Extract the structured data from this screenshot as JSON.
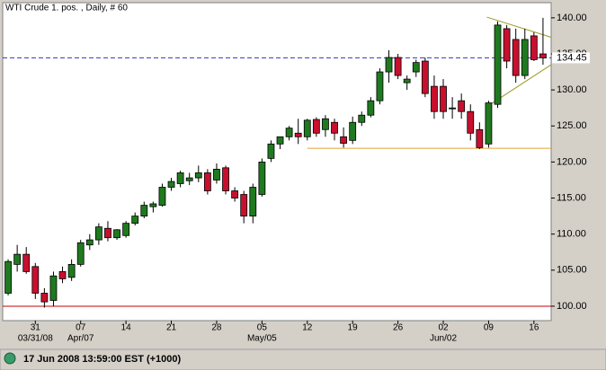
{
  "chart_data": {
    "type": "candlestick",
    "title": "WTI Crude 1. pos. , Daily, # 60",
    "up_color": "#1f7a1f",
    "down_color": "#c8102e",
    "xlim": [
      -0.6,
      59.9
    ],
    "ylim": [
      98,
      142.1
    ],
    "yticks": [
      {
        "value": 100,
        "label": "100.00"
      },
      {
        "value": 105,
        "label": "105.00"
      },
      {
        "value": 110,
        "label": "110.00"
      },
      {
        "value": 115,
        "label": "115.00"
      },
      {
        "value": 120,
        "label": "120.00"
      },
      {
        "value": 125,
        "label": "125.00"
      },
      {
        "value": 130,
        "label": "130.00"
      },
      {
        "value": 135,
        "label": "135.00"
      },
      {
        "value": 140,
        "label": "140.00"
      }
    ],
    "xticks": [
      {
        "value": 3,
        "label": "31"
      },
      {
        "value": 8,
        "label": "07"
      },
      {
        "value": 13,
        "label": "14"
      },
      {
        "value": 18,
        "label": "21"
      },
      {
        "value": 23,
        "label": "28"
      },
      {
        "value": 28,
        "label": "05"
      },
      {
        "value": 33,
        "label": "12"
      },
      {
        "value": 38,
        "label": "19"
      },
      {
        "value": 43,
        "label": "26"
      },
      {
        "value": 48,
        "label": "02"
      },
      {
        "value": 53,
        "label": "09"
      },
      {
        "value": 58,
        "label": "16"
      }
    ],
    "xticks_major": [
      {
        "value": 3,
        "label": "03/31/08"
      },
      {
        "value": 8,
        "label": "Apr/07"
      },
      {
        "value": 28,
        "label": "May/05"
      },
      {
        "value": 48,
        "label": "Jun/02"
      }
    ],
    "open": [
      101.8,
      105.8,
      107.2,
      105.5,
      101.8,
      100.8,
      104.8,
      104.0,
      105.8,
      108.5,
      109.2,
      110.8,
      109.5,
      109.8,
      111.5,
      112.5,
      113.8,
      114.0,
      116.5,
      117.0,
      117.4,
      117.8,
      118.5,
      117.5,
      119.2,
      116.0,
      115.5,
      112.5,
      115.5,
      120.5,
      122.5,
      123.5,
      124.0,
      123.5,
      125.9,
      124.5,
      125.5,
      123.5,
      123.0,
      125.5,
      126.5,
      128.5,
      132.5,
      134.5,
      131.0,
      132.5,
      134.0,
      130.5,
      130.5,
      127.5,
      128.5,
      127.0,
      124.5,
      122.5,
      128.0,
      138.5,
      137.0,
      132.0,
      137.5,
      135.0
    ],
    "high": [
      106.5,
      108.5,
      108.2,
      106.0,
      102.5,
      104.8,
      105.5,
      106.5,
      109.2,
      110.0,
      111.5,
      111.8,
      110.7,
      111.8,
      113.0,
      114.5,
      114.5,
      117.0,
      117.8,
      118.8,
      118.5,
      119.5,
      119.0,
      119.8,
      119.5,
      116.5,
      116.0,
      117.0,
      120.5,
      123.0,
      123.5,
      125.0,
      126.0,
      126.0,
      126.2,
      126.5,
      126.0,
      124.8,
      126.3,
      127.0,
      129.0,
      133.0,
      135.5,
      135.0,
      132.0,
      134.2,
      134.5,
      132.0,
      131.5,
      129.0,
      129.5,
      128.0,
      125.5,
      128.5,
      139.5,
      139.0,
      138.5,
      138.5,
      138.0,
      140.0
    ],
    "low": [
      101.5,
      104.8,
      104.5,
      101.0,
      99.8,
      100.0,
      103.2,
      103.5,
      105.5,
      107.8,
      108.5,
      109.0,
      109.2,
      109.5,
      111.2,
      112.2,
      113.0,
      113.8,
      116.0,
      116.5,
      116.8,
      117.2,
      115.5,
      117.0,
      115.5,
      114.5,
      111.5,
      111.5,
      115.2,
      120.0,
      121.8,
      123.0,
      122.5,
      123.0,
      123.5,
      123.5,
      123.0,
      122.0,
      122.5,
      125.0,
      126.2,
      128.0,
      131.0,
      131.5,
      130.0,
      131.8,
      129.0,
      126.0,
      126.0,
      126.0,
      126.0,
      123.0,
      121.8,
      122.0,
      127.5,
      133.0,
      131.0,
      131.5,
      134.0,
      133.5
    ],
    "close": [
      106.2,
      107.2,
      104.8,
      101.8,
      100.6,
      104.2,
      103.8,
      105.8,
      108.8,
      109.2,
      111.0,
      109.5,
      110.6,
      111.5,
      112.5,
      114.0,
      114.2,
      116.5,
      117.3,
      118.5,
      117.8,
      118.5,
      116.0,
      119.0,
      116.0,
      115.0,
      112.5,
      116.5,
      120.0,
      122.5,
      123.5,
      124.7,
      123.5,
      125.8,
      124.0,
      126.0,
      124.0,
      122.6,
      125.5,
      126.5,
      128.5,
      132.5,
      134.5,
      132.0,
      131.5,
      133.8,
      129.5,
      127.0,
      127.0,
      127.5,
      127.0,
      124.0,
      122.0,
      128.2,
      139.0,
      134.0,
      132.0,
      137.0,
      134.2,
      134.45
    ],
    "hlines": [
      {
        "value": 134.45,
        "color": "#3030d0",
        "dashed": true,
        "from": -0.6,
        "label": "134.45"
      },
      {
        "value": 121.9,
        "color": "#e0a030",
        "dashed": false,
        "from": 33
      },
      {
        "value": 100,
        "color": "#c00000",
        "dashed": false,
        "from": -0.6
      }
    ],
    "trendlines": [
      {
        "x": [
          52.8,
          59.9
        ],
        "values": [
          140.1,
          137.3
        ],
        "color": "#9a9a20"
      },
      {
        "x": [
          53.2,
          59.9
        ],
        "values": [
          128.0,
          133.5
        ],
        "color": "#9a9a20"
      }
    ]
  },
  "status_bar": {
    "text": "17 Jun 2008 13:59:00  EST (+1000)"
  }
}
